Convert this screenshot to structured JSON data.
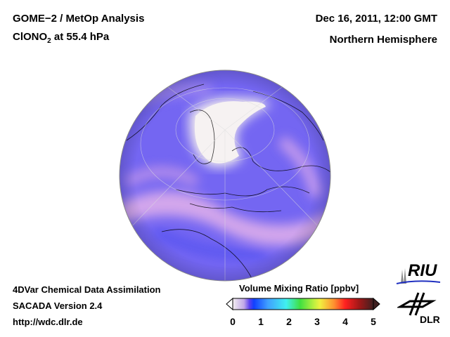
{
  "header": {
    "title_line1": "GOME−2 / MetOp Analysis",
    "species_prefix": "ClONO",
    "species_sub": "2",
    "species_suffix": " at 55.4 hPa",
    "date": "Dec 16, 2011, 12:00 GMT",
    "region": "Northern Hemisphere"
  },
  "footer": {
    "line1": "4DVar Chemical Data Assimilation",
    "line2": "SACADA Version 2.4",
    "line3": "http://wdc.dlr.de"
  },
  "colorbar": {
    "title": "Volume Mixing Ratio [ppbv]",
    "ticks": [
      "0",
      "1",
      "2",
      "3",
      "4",
      "5"
    ],
    "range": [
      0,
      5
    ]
  },
  "logos": {
    "riu": "RIU",
    "dlr": "DLR"
  },
  "colors": {
    "ocean_base": "#7466f2",
    "low": "#f4eef0",
    "high_band": "#e8b8e8"
  }
}
